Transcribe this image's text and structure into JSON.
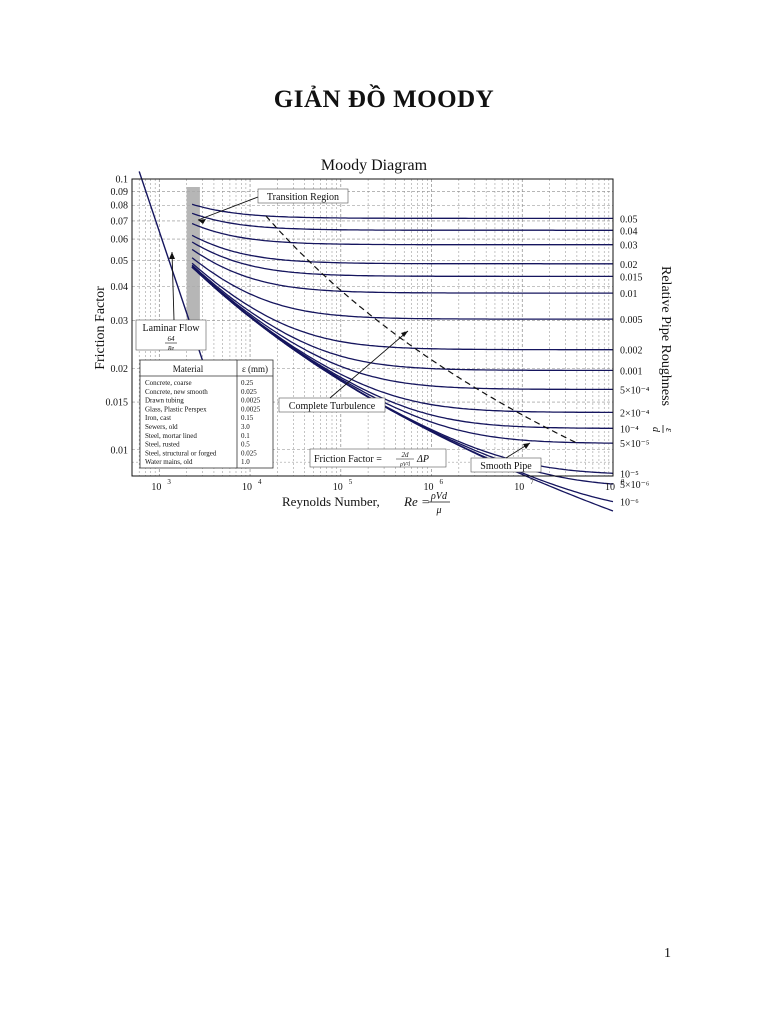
{
  "page": {
    "title": "GIẢN ĐỒ MOODY",
    "number": "1"
  },
  "chart_data": {
    "type": "line",
    "title": "Moody Diagram",
    "xlabel": "Reynolds Number, Re = ρVd/μ",
    "ylabel": "Friction Factor",
    "right_label": "Relative Pipe Roughness ε/d",
    "x_scale": "log",
    "y_scale": "log",
    "xlim": [
      500,
      100000000
    ],
    "ylim": [
      0.008,
      0.1
    ],
    "grid": true,
    "x_ticks": [
      {
        "value": 1000,
        "base": "10",
        "exp": "3"
      },
      {
        "value": 10000,
        "base": "10",
        "exp": "4"
      },
      {
        "value": 100000,
        "base": "10",
        "exp": "5"
      },
      {
        "value": 1000000,
        "base": "10",
        "exp": "6"
      },
      {
        "value": 10000000,
        "base": "10",
        "exp": "7"
      },
      {
        "value": 100000000,
        "base": "10",
        "exp": "8"
      }
    ],
    "y_ticks": [
      {
        "value": 0.1,
        "label": "0.1"
      },
      {
        "value": 0.09,
        "label": "0.09"
      },
      {
        "value": 0.08,
        "label": "0.08"
      },
      {
        "value": 0.07,
        "label": "0.07"
      },
      {
        "value": 0.06,
        "label": "0.06"
      },
      {
        "value": 0.05,
        "label": "0.05"
      },
      {
        "value": 0.04,
        "label": "0.04"
      },
      {
        "value": 0.03,
        "label": "0.03"
      },
      {
        "value": 0.02,
        "label": "0.02"
      },
      {
        "value": 0.015,
        "label": "0.015"
      },
      {
        "value": 0.01,
        "label": "0.01"
      }
    ],
    "roughness_series": [
      {
        "value": 0.05,
        "label": "0.05"
      },
      {
        "value": 0.04,
        "label": "0.04"
      },
      {
        "value": 0.03,
        "label": "0.03"
      },
      {
        "value": 0.02,
        "label": "0.02"
      },
      {
        "value": 0.015,
        "label": "0.015"
      },
      {
        "value": 0.01,
        "label": "0.01"
      },
      {
        "value": 0.005,
        "label": "0.005"
      },
      {
        "value": 0.002,
        "label": "0.002"
      },
      {
        "value": 0.001,
        "label": "0.001"
      },
      {
        "value": 0.0005,
        "label": "5×10⁻⁴"
      },
      {
        "value": 0.0002,
        "label": "2×10⁻⁴"
      },
      {
        "value": 0.0001,
        "label": "10⁻⁴"
      },
      {
        "value": 5e-05,
        "label": "5×10⁻⁵"
      },
      {
        "value": 1e-05,
        "label": "10⁻⁵"
      },
      {
        "value": 5e-06,
        "label": "5×10⁻⁶"
      },
      {
        "value": 1e-06,
        "label": "10⁻⁶"
      },
      {
        "value": 0,
        "label": ""
      }
    ],
    "laminar": {
      "re_range": [
        600,
        3200
      ],
      "formula": "f = 64/Re"
    },
    "transition_band": {
      "re_range": [
        2000,
        2800
      ]
    },
    "complete_turbulence_line": "dashed",
    "annotations": {
      "transition_region": "Transition Region",
      "laminar_flow": "Laminar Flow",
      "laminar_formula_num": "64",
      "laminar_formula_den": "Re",
      "complete_turbulence": "Complete Turbulence",
      "smooth_pipe": "Smooth Pipe",
      "friction_factor_formula": "Friction Factor = 2d/(ρV²l) ΔP"
    },
    "materials_table": {
      "headers": [
        "Material",
        "ε (mm)"
      ],
      "rows": [
        [
          "Concrete, coarse",
          "0.25"
        ],
        [
          "Concrete, new smooth",
          "0.025"
        ],
        [
          "Drawn tubing",
          "0.0025"
        ],
        [
          "Glass, Plastic Perspex",
          "0.0025"
        ],
        [
          "Iron, cast",
          "0.15"
        ],
        [
          "Sewers, old",
          "3.0"
        ],
        [
          "Steel, mortar lined",
          "0.1"
        ],
        [
          "Steel, rusted",
          "0.5"
        ],
        [
          "Steel, structural or forged",
          "0.025"
        ],
        [
          "Water mains, old",
          "1.0"
        ]
      ]
    },
    "colors": {
      "curves": "#15155e",
      "band": "#a9a9a9",
      "grid": "#8a8a8a",
      "axis": "#111111"
    }
  }
}
